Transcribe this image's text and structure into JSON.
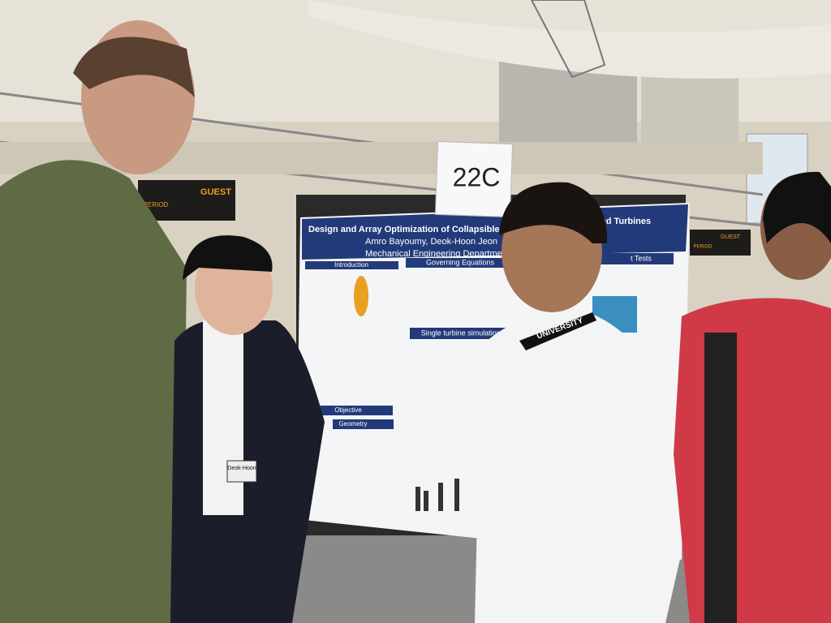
{
  "sign": "22C",
  "scoreboard": {
    "label": "GUEST",
    "sub_label": "PERIOD"
  },
  "scoreboard_right": {
    "label": "GUEST",
    "sub_label": "PERIOD"
  },
  "poster": {
    "title_left": "Design and Array Optimization of Collapsible, Low",
    "title_right": "nd Turbines",
    "authors": "Amro Bayoumy, Deok-Hoon Jeon",
    "department": "Mechanical Engineering Department,",
    "sections": [
      "Introduction",
      "Governing Equations",
      "Single turbine simulations",
      "Objective",
      "Geometry",
      "t Tests"
    ]
  },
  "lanyard": "UNIVERSITY",
  "badge": "Deok-Hoon"
}
